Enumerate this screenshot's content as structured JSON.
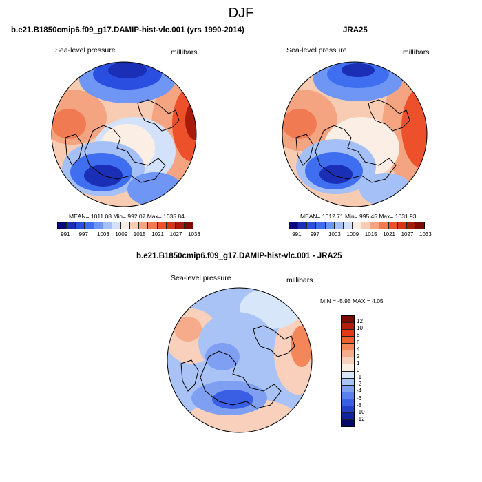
{
  "title": "DJF",
  "panels": {
    "model": {
      "title": "b.e21.B1850cmip6.f09_g17.DAMIP-hist-vlc.001 (yrs 1990-2014)",
      "left_label": "Sea-level pressure",
      "right_label": "millibars",
      "stats": "MEAN= 1011.08  Min= 992.07  Max= 1035.84"
    },
    "obs": {
      "title": "JRA25",
      "left_label": "Sea-level pressure",
      "right_label": "millibars",
      "stats": "MEAN= 1012.71  Min= 995.45  Max= 1031.93"
    },
    "diff": {
      "title": "b.e21.B1850cmip6.f09_g17.DAMIP-hist-vlc.001 - JRA25",
      "left_label": "Sea-level pressure",
      "right_label": "millibars",
      "stats": "MIN =  -5.95 MAX =   4.05"
    }
  },
  "colorbar_abs": {
    "colors": [
      "#08087a",
      "#1a2fb5",
      "#2a4fe0",
      "#3f6ff0",
      "#6f95f5",
      "#a5c0f7",
      "#d3e2fa",
      "#fbeee5",
      "#f8cbb3",
      "#f4a481",
      "#f07a52",
      "#ec512c",
      "#d53615",
      "#a81b0a",
      "#7d0b05"
    ],
    "labels": [
      "991",
      "997",
      "1003",
      "1009",
      "1015",
      "1021",
      "1027",
      "1033"
    ]
  },
  "colorbar_diff": {
    "colors": [
      "#7d0b05",
      "#b51d0b",
      "#e53a17",
      "#f0602f",
      "#f3875a",
      "#f6ab8a",
      "#f8d0bb",
      "#fbeee5",
      "#d8e6fa",
      "#a9c3f6",
      "#7f9ff2",
      "#5a7fee",
      "#3a5fe5",
      "#2340c8",
      "#10229c",
      "#040867"
    ],
    "labels": [
      "12",
      "10",
      "8",
      "6",
      "4",
      "2",
      "1",
      "0",
      "-1",
      "-2",
      "-4",
      "-6",
      "-8",
      "-10",
      "-12"
    ]
  }
}
